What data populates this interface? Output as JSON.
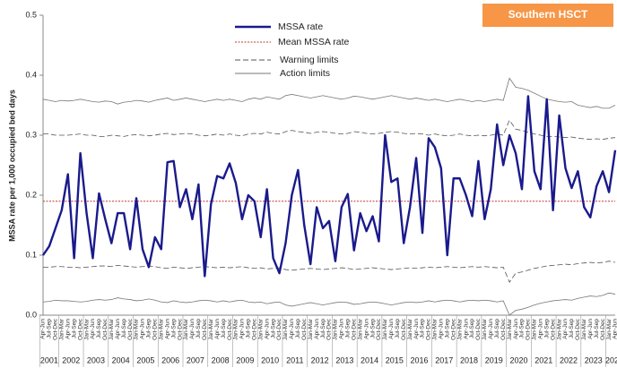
{
  "chart_data": {
    "type": "line",
    "badge": "Southern HSCT",
    "y_label": "MSSA rate per 1,000 occupied bed days",
    "ylim": [
      0,
      0.5
    ],
    "yticks": [
      {
        "value": 0,
        "label": "0.0"
      },
      0.1,
      0.2,
      0.3,
      0.4,
      0.5
    ],
    "x_groups": [
      {
        "label": "2001",
        "categories": [
          "Apr-Jun",
          "Jul-Sep",
          "Oct-Dec"
        ]
      },
      {
        "label": "2002",
        "categories": [
          "Jan-Mar",
          "Apr-Jun",
          "Jul-Sep",
          "Oct-Dec"
        ]
      },
      {
        "label": "2003",
        "categories": [
          "Jan-Mar",
          "Apr-Jun",
          "Jul-Sep",
          "Oct-Dec"
        ]
      },
      {
        "label": "2004",
        "categories": [
          "Jan-Mar",
          "Apr-Jun",
          "Jul-Sep",
          "Oct-Dec"
        ]
      },
      {
        "label": "2005",
        "categories": [
          "Jan-Mar",
          "Apr-Jun",
          "Jul-Sep",
          "Oct-Dec"
        ]
      },
      {
        "label": "2006",
        "categories": [
          "Jan-Mar",
          "Apr-Jun",
          "Jul-Sep",
          "Oct-Dec"
        ]
      },
      {
        "label": "2007",
        "categories": [
          "Jan-Mar",
          "Apr-Jun",
          "Jul-Sep",
          "Oct-Dec"
        ]
      },
      {
        "label": "2008",
        "categories": [
          "Jan-Mar",
          "Apr-Jun",
          "Jul-Sep",
          "Oct-Dec"
        ]
      },
      {
        "label": "2009",
        "categories": [
          "Jan-Mar",
          "Apr-Jun",
          "Jul-Sep",
          "Oct-Dec"
        ]
      },
      {
        "label": "2010",
        "categories": [
          "Jan-Mar",
          "Apr-Jun",
          "Jul-Sep",
          "Oct-Dec"
        ]
      },
      {
        "label": "2011",
        "categories": [
          "Jan-Mar",
          "Apr-Jun",
          "Jul-Sep",
          "Oct-Dec"
        ]
      },
      {
        "label": "2012",
        "categories": [
          "Jan-Mar",
          "Apr-Jun",
          "Jul-Sep",
          "Oct-Dec"
        ]
      },
      {
        "label": "2013",
        "categories": [
          "Jan-Mar",
          "Apr-Jun",
          "Jul-Sep",
          "Oct-Dec"
        ]
      },
      {
        "label": "2014",
        "categories": [
          "Jan-Mar",
          "Apr-Jun",
          "Jul-Sep",
          "Oct-Dec"
        ]
      },
      {
        "label": "2015",
        "categories": [
          "Jan-Mar",
          "Apr-Jun",
          "Jul-Sep",
          "Oct-Dec"
        ]
      },
      {
        "label": "2016",
        "categories": [
          "Jan-Mar",
          "Apr-Jun",
          "Jul-Sep",
          "Oct-Dec"
        ]
      },
      {
        "label": "2017",
        "categories": [
          "Jan-Mar",
          "Apr-Jun",
          "Jul-Sep",
          "Oct-Dec"
        ]
      },
      {
        "label": "2018",
        "categories": [
          "Jan-Mar",
          "Apr-Jun",
          "Jul-Sep",
          "Oct-Dec"
        ]
      },
      {
        "label": "2019",
        "categories": [
          "Jan-Mar",
          "Apr-Jun",
          "Jul-Sep",
          "Oct-Dec"
        ]
      },
      {
        "label": "2020",
        "categories": [
          "Jan-Mar",
          "Apr-Jun",
          "Jul-Sep",
          "Oct-Dec"
        ]
      },
      {
        "label": "2021",
        "categories": [
          "Jan-Mar",
          "Apr-Jun",
          "Jul-Sep",
          "Oct-Dec"
        ]
      },
      {
        "label": "2022",
        "categories": [
          "Jan-Mar",
          "Apr-Jun",
          "Jul-Sep",
          "Oct-Dec"
        ]
      },
      {
        "label": "2023",
        "categories": [
          "Jan-Mar",
          "Apr-Jun",
          "Jul-Sep",
          "Oct-Dec"
        ]
      },
      {
        "label": "202",
        "categories": [
          "Jan-Mar",
          "Apr-Jun"
        ]
      }
    ],
    "rate": {
      "name": "MSSA rate",
      "color": "#1a1a8c",
      "values": [
        0.1,
        0.115,
        0.145,
        0.175,
        0.235,
        0.095,
        0.27,
        0.17,
        0.095,
        0.203,
        0.16,
        0.12,
        0.17,
        0.17,
        0.11,
        0.195,
        0.11,
        0.08,
        0.13,
        0.11,
        0.255,
        0.257,
        0.18,
        0.21,
        0.16,
        0.218,
        0.065,
        0.185,
        0.232,
        0.228,
        0.253,
        0.22,
        0.16,
        0.2,
        0.19,
        0.13,
        0.21,
        0.095,
        0.07,
        0.12,
        0.2,
        0.242,
        0.15,
        0.085,
        0.18,
        0.145,
        0.157,
        0.09,
        0.18,
        0.202,
        0.108,
        0.17,
        0.14,
        0.165,
        0.123,
        0.3,
        0.222,
        0.228,
        0.12,
        0.18,
        0.262,
        0.137,
        0.295,
        0.28,
        0.245,
        0.1,
        0.228,
        0.228,
        0.2,
        0.165,
        0.257,
        0.16,
        0.21,
        0.318,
        0.25,
        0.3,
        0.27,
        0.21,
        0.365,
        0.24,
        0.21,
        0.36,
        0.175,
        0.333,
        0.245,
        0.212,
        0.24,
        0.18,
        0.163,
        0.215,
        0.24,
        0.205,
        0.275
      ]
    },
    "mean": {
      "name": "Mean MSSA rate",
      "color": "#c0392b",
      "value": 0.19
    },
    "warning": {
      "name": "Warning limits",
      "color": "#555555",
      "upper": [
        0.302,
        0.302,
        0.3,
        0.3,
        0.3,
        0.301,
        0.302,
        0.3,
        0.3,
        0.298,
        0.298,
        0.3,
        0.299,
        0.298,
        0.3,
        0.301,
        0.3,
        0.299,
        0.3,
        0.302,
        0.303,
        0.301,
        0.302,
        0.303,
        0.302,
        0.3,
        0.299,
        0.3,
        0.302,
        0.3,
        0.302,
        0.3,
        0.299,
        0.302,
        0.303,
        0.302,
        0.305,
        0.303,
        0.302,
        0.306,
        0.308,
        0.306,
        0.305,
        0.303,
        0.305,
        0.306,
        0.305,
        0.303,
        0.302,
        0.303,
        0.306,
        0.305,
        0.303,
        0.302,
        0.303,
        0.305,
        0.306,
        0.305,
        0.303,
        0.302,
        0.303,
        0.302,
        0.3,
        0.302,
        0.3,
        0.299,
        0.3,
        0.302,
        0.3,
        0.299,
        0.3,
        0.299,
        0.3,
        0.302,
        0.3,
        0.325,
        0.31,
        0.308,
        0.305,
        0.302,
        0.3,
        0.298,
        0.298,
        0.297,
        0.296,
        0.297,
        0.295,
        0.294,
        0.293,
        0.294,
        0.293,
        0.295,
        0.296
      ],
      "lower": [
        0.08,
        0.08,
        0.081,
        0.081,
        0.08,
        0.08,
        0.079,
        0.08,
        0.081,
        0.082,
        0.082,
        0.081,
        0.083,
        0.082,
        0.081,
        0.08,
        0.081,
        0.082,
        0.081,
        0.079,
        0.078,
        0.08,
        0.079,
        0.078,
        0.079,
        0.08,
        0.081,
        0.08,
        0.079,
        0.08,
        0.079,
        0.08,
        0.081,
        0.079,
        0.078,
        0.079,
        0.077,
        0.078,
        0.079,
        0.076,
        0.075,
        0.076,
        0.077,
        0.078,
        0.077,
        0.076,
        0.077,
        0.078,
        0.079,
        0.078,
        0.076,
        0.077,
        0.078,
        0.079,
        0.078,
        0.077,
        0.076,
        0.077,
        0.078,
        0.079,
        0.078,
        0.079,
        0.08,
        0.079,
        0.08,
        0.081,
        0.08,
        0.079,
        0.08,
        0.081,
        0.08,
        0.081,
        0.08,
        0.079,
        0.08,
        0.055,
        0.07,
        0.072,
        0.075,
        0.078,
        0.08,
        0.082,
        0.083,
        0.084,
        0.085,
        0.084,
        0.086,
        0.087,
        0.088,
        0.087,
        0.088,
        0.09,
        0.088
      ]
    },
    "action": {
      "name": "Action limits",
      "color": "#777777",
      "upper": [
        0.36,
        0.358,
        0.356,
        0.358,
        0.357,
        0.358,
        0.36,
        0.358,
        0.356,
        0.355,
        0.357,
        0.356,
        0.352,
        0.355,
        0.356,
        0.358,
        0.357,
        0.355,
        0.358,
        0.36,
        0.362,
        0.358,
        0.36,
        0.362,
        0.36,
        0.358,
        0.356,
        0.358,
        0.36,
        0.358,
        0.36,
        0.358,
        0.356,
        0.36,
        0.362,
        0.36,
        0.364,
        0.362,
        0.36,
        0.366,
        0.368,
        0.366,
        0.364,
        0.362,
        0.364,
        0.366,
        0.364,
        0.362,
        0.36,
        0.362,
        0.365,
        0.364,
        0.362,
        0.36,
        0.362,
        0.364,
        0.366,
        0.364,
        0.362,
        0.36,
        0.362,
        0.36,
        0.358,
        0.36,
        0.358,
        0.356,
        0.358,
        0.36,
        0.358,
        0.356,
        0.358,
        0.356,
        0.358,
        0.36,
        0.358,
        0.395,
        0.38,
        0.378,
        0.375,
        0.37,
        0.365,
        0.36,
        0.358,
        0.356,
        0.355,
        0.356,
        0.35,
        0.348,
        0.346,
        0.348,
        0.345,
        0.345,
        0.35
      ],
      "lower": [
        0.022,
        0.023,
        0.025,
        0.024,
        0.024,
        0.023,
        0.022,
        0.023,
        0.025,
        0.026,
        0.025,
        0.026,
        0.029,
        0.027,
        0.026,
        0.024,
        0.025,
        0.027,
        0.025,
        0.022,
        0.021,
        0.024,
        0.022,
        0.021,
        0.022,
        0.024,
        0.025,
        0.024,
        0.022,
        0.024,
        0.022,
        0.024,
        0.025,
        0.022,
        0.021,
        0.022,
        0.019,
        0.021,
        0.022,
        0.017,
        0.015,
        0.017,
        0.019,
        0.021,
        0.019,
        0.017,
        0.019,
        0.021,
        0.022,
        0.021,
        0.018,
        0.019,
        0.021,
        0.022,
        0.021,
        0.019,
        0.017,
        0.019,
        0.021,
        0.022,
        0.021,
        0.022,
        0.024,
        0.022,
        0.024,
        0.025,
        0.024,
        0.022,
        0.024,
        0.025,
        0.024,
        0.025,
        0.024,
        0.022,
        0.024,
        0,
        0.008,
        0.01,
        0.013,
        0.017,
        0.02,
        0.022,
        0.024,
        0.025,
        0.026,
        0.025,
        0.028,
        0.03,
        0.032,
        0.031,
        0.033,
        0.037,
        0.035
      ]
    }
  }
}
